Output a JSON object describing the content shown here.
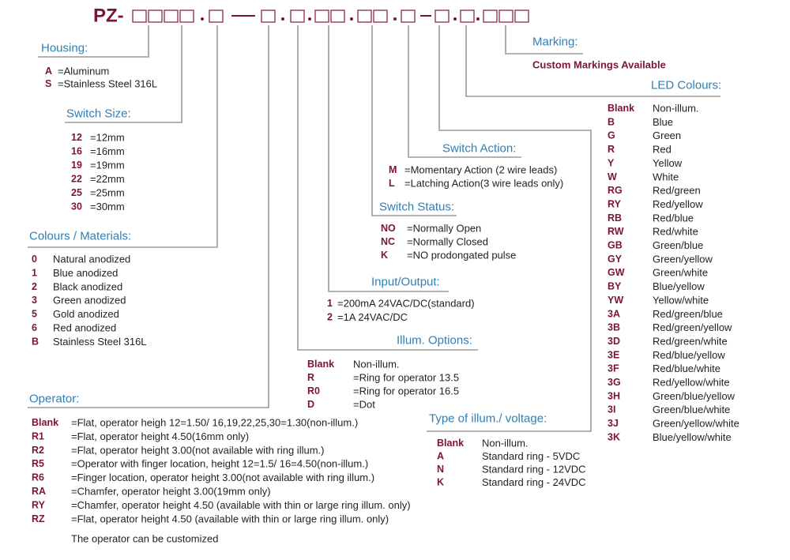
{
  "part_number": {
    "prefix": "PZ-"
  },
  "sections": {
    "housing": {
      "title": "Housing:",
      "items": [
        {
          "code": "A",
          "text": "=Aluminum"
        },
        {
          "code": "S",
          "text": "=Stainless Steel 316L"
        }
      ]
    },
    "switch_size": {
      "title": "Switch Size:",
      "items": [
        {
          "code": "12",
          "text": "=12mm"
        },
        {
          "code": "16",
          "text": "=16mm"
        },
        {
          "code": "19",
          "text": "=19mm"
        },
        {
          "code": "22",
          "text": "=22mm"
        },
        {
          "code": "25",
          "text": "=25mm"
        },
        {
          "code": "30",
          "text": "=30mm"
        }
      ]
    },
    "colours": {
      "title": "Colours / Materials:",
      "items": [
        {
          "code": "0",
          "text": "Natural anodized"
        },
        {
          "code": "1",
          "text": "Blue anodized"
        },
        {
          "code": "2",
          "text": "Black anodized"
        },
        {
          "code": "3",
          "text": "Green anodized"
        },
        {
          "code": "5",
          "text": "Gold anodized"
        },
        {
          "code": "6",
          "text": "Red anodized"
        },
        {
          "code": "B",
          "text": "Stainless Steel 316L"
        }
      ]
    },
    "operator": {
      "title": "Operator:",
      "items": [
        {
          "code": "Blank",
          "text": "=Flat, operator heigh 12=1.50/ 16,19,22,25,30=1.30(non-illum.)"
        },
        {
          "code": "R1",
          "text": "=Flat, operator height 4.50(16mm only)"
        },
        {
          "code": "R2",
          "text": "=Flat, operator height 3.00(not available with ring illum.)"
        },
        {
          "code": "R5",
          "text": "=Operator with finger location, height 12=1.5/ 16=4.50(non-illum.)"
        },
        {
          "code": "R6",
          "text": "=Finger location, operator height 3.00(not available with ring illum.)"
        },
        {
          "code": "RA",
          "text": "=Chamfer, operator height 3.00(19mm only)"
        },
        {
          "code": "RY",
          "text": "=Chamfer, operator height 4.50 (available with thin or large ring illum. only)"
        },
        {
          "code": "RZ",
          "text": "=Flat, operator height 4.50 (available with thin or large ring illum. only)"
        }
      ],
      "note": "The operator can be customized"
    },
    "illum_options": {
      "title": "Illum. Options:",
      "items": [
        {
          "code": "Blank",
          "text": "Non-illum."
        },
        {
          "code": "R",
          "text": "=Ring for operator 13.5"
        },
        {
          "code": "R0",
          "text": "=Ring for operator 16.5"
        },
        {
          "code": "D",
          "text": "=Dot"
        }
      ]
    },
    "input_output": {
      "title": "Input/Output:",
      "items": [
        {
          "code": "1",
          "text": "=200mA 24VAC/DC(standard)"
        },
        {
          "code": "2",
          "text": "=1A 24VAC/DC"
        }
      ]
    },
    "switch_status": {
      "title": "Switch Status:",
      "items": [
        {
          "code": "NO",
          "text": "=Normally Open"
        },
        {
          "code": "NC",
          "text": "=Normally Closed"
        },
        {
          "code": "K",
          "text": "=NO prodongated pulse"
        }
      ]
    },
    "switch_action": {
      "title": "Switch Action:",
      "items": [
        {
          "code": "M",
          "text": "=Momentary Action (2 wire leads)"
        },
        {
          "code": "L",
          "text": "=Latching Action(3 wire leads only)"
        }
      ]
    },
    "illum_type": {
      "title": "Type of illum./ voltage:",
      "items": [
        {
          "code": "Blank",
          "text": "Non-illum."
        },
        {
          "code": "A",
          "text": "Standard ring - 5VDC"
        },
        {
          "code": "N",
          "text": "Standard ring - 12VDC"
        },
        {
          "code": "K",
          "text": "Standard ring - 24VDC"
        }
      ]
    },
    "led_colours": {
      "title": "LED Colours:",
      "items": [
        {
          "code": "Blank",
          "text": "Non-illum."
        },
        {
          "code": "B",
          "text": "Blue"
        },
        {
          "code": "G",
          "text": "Green"
        },
        {
          "code": "R",
          "text": "Red"
        },
        {
          "code": "Y",
          "text": "Yellow"
        },
        {
          "code": "W",
          "text": "White"
        },
        {
          "code": "RG",
          "text": "Red/green"
        },
        {
          "code": "RY",
          "text": "Red/yellow"
        },
        {
          "code": "RB",
          "text": "Red/blue"
        },
        {
          "code": "RW",
          "text": "Red/white"
        },
        {
          "code": "GB",
          "text": "Green/blue"
        },
        {
          "code": "GY",
          "text": "Green/yellow"
        },
        {
          "code": "GW",
          "text": "Green/white"
        },
        {
          "code": "BY",
          "text": "Blue/yellow"
        },
        {
          "code": "YW",
          "text": "Yellow/white"
        },
        {
          "code": "3A",
          "text": "Red/green/blue"
        },
        {
          "code": "3B",
          "text": "Red/green/yellow"
        },
        {
          "code": "3D",
          "text": "Red/green/white"
        },
        {
          "code": "3E",
          "text": "Red/blue/yellow"
        },
        {
          "code": "3F",
          "text": "Red/blue/white"
        },
        {
          "code": "3G",
          "text": "Red/yellow/white"
        },
        {
          "code": "3H",
          "text": "Green/blue/yellow"
        },
        {
          "code": "3I",
          "text": "Green/blue/white"
        },
        {
          "code": "3J",
          "text": "Green/yellow/white"
        },
        {
          "code": "3K",
          "text": "Blue/yellow/white"
        }
      ]
    },
    "marking": {
      "title": "Marking:",
      "items": [],
      "note": "Custom Markings Available"
    }
  }
}
